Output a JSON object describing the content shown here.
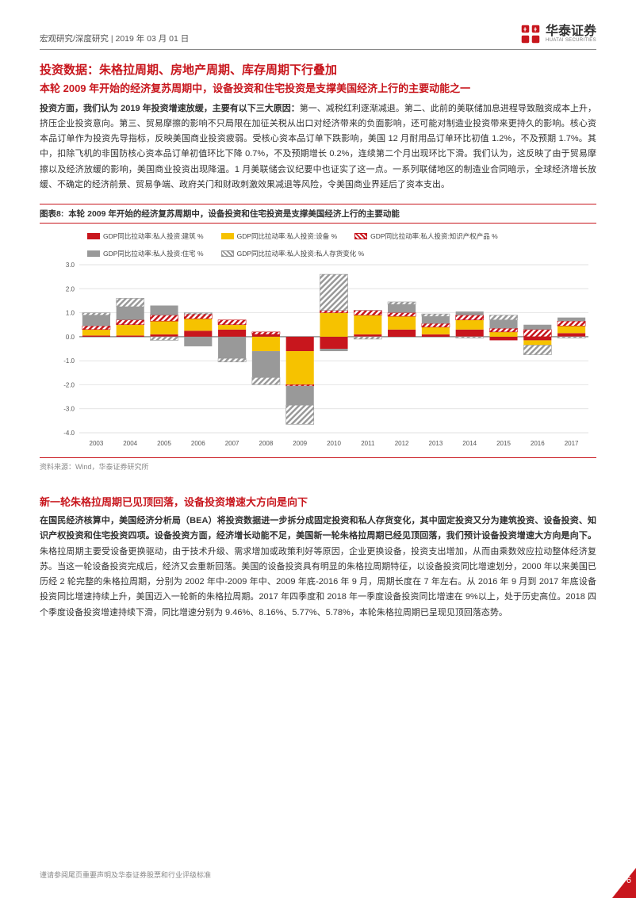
{
  "header": {
    "breadcrumb": "宏观研究/深度研究 | 2019 年 03 月 01 日",
    "logo_cn": "华泰证券",
    "logo_en": "HUATAI SECURITIES"
  },
  "section1": {
    "title": "投资数据：朱格拉周期、房地产周期、库存周期下行叠加",
    "subtitle": "本轮 2009 年开始的经济复苏周期中，设备投资和住宅投资是支撑美国经济上行的主要动能之一",
    "body_lead": "投资方面，我们认为 2019 年投资增速放缓，主要有以下三大原因：",
    "body_rest": "第一、减税红利逐渐减退。第二、此前的美联储加息进程导致融资成本上升，挤压企业投资意向。第三、贸易摩擦的影响不只局限在加征关税从出口对经济带来的负面影响，还可能对制造业投资带来更持久的影响。核心资本品订单作为投资先导指标，反映美国商业投资疲弱。受核心资本品订单下跌影响，美国 12 月耐用品订单环比初值 1.2%，不及预期 1.7%。其中，扣除飞机的非国防核心资本品订单初值环比下降 0.7%，不及预期增长 0.2%，连续第二个月出现环比下滑。我们认为，这反映了由于贸易摩擦以及经济放缓的影响，美国商业投资出现降温。1 月美联储会议纪要中也证实了这一点。一系列联储地区的制造业合同暗示，全球经济增长放缓、不确定的经济前景、贸易争端、政府关门和财政刺激效果减退等风险，令美国商业界延后了资本支出。"
  },
  "chart": {
    "caption_label": "图表8:",
    "caption_text": "本轮 2009 年开始的经济复苏周期中，设备投资和住宅投资是支撑美国经济上行的主要动能",
    "source": "资料来源：Wind，华泰证券研究所",
    "legend": [
      {
        "label": "GDP同比拉动率:私人投资:建筑 %",
        "fill": "#c8161d",
        "pattern": "solid"
      },
      {
        "label": "GDP同比拉动率:私人投资:设备 %",
        "fill": "#f6c200",
        "pattern": "solid"
      },
      {
        "label": "GDP同比拉动率:私人投资:知识产权产品 %",
        "fill": "#c8161d",
        "pattern": "hatch"
      },
      {
        "label": "GDP同比拉动率:私人投资:住宅 %",
        "fill": "#999999",
        "pattern": "solid"
      },
      {
        "label": "GDP同比拉动率:私人投资:私人存货变化 %",
        "fill": "#999999",
        "pattern": "hatch"
      }
    ],
    "categories": [
      "2003",
      "2004",
      "2005",
      "2006",
      "2007",
      "2008",
      "2009",
      "2010",
      "2011",
      "2012",
      "2013",
      "2014",
      "2015",
      "2016",
      "2017"
    ],
    "series": {
      "construction": [
        0.05,
        0.05,
        0.1,
        0.25,
        0.3,
        0.1,
        -0.6,
        -0.5,
        0.1,
        0.3,
        0.1,
        0.3,
        -0.15,
        -0.15,
        0.15
      ],
      "equipment": [
        0.25,
        0.45,
        0.55,
        0.5,
        0.2,
        -0.6,
        -1.4,
        1.0,
        0.8,
        0.55,
        0.3,
        0.4,
        0.2,
        -0.2,
        0.3
      ],
      "ip": [
        0.15,
        0.2,
        0.25,
        0.2,
        0.2,
        0.1,
        -0.05,
        0.1,
        0.2,
        0.15,
        0.15,
        0.2,
        0.15,
        0.3,
        0.2
      ],
      "residential": [
        0.45,
        0.55,
        0.4,
        -0.4,
        -0.9,
        -1.1,
        -0.8,
        -0.1,
        0.0,
        0.35,
        0.3,
        0.15,
        0.35,
        0.2,
        0.15
      ],
      "inventory": [
        0.1,
        0.35,
        -0.15,
        0.05,
        -0.15,
        -0.3,
        -0.8,
        1.5,
        -0.1,
        0.1,
        0.1,
        -0.05,
        0.2,
        -0.4,
        -0.05
      ]
    },
    "ylim": [
      -4.0,
      3.0
    ],
    "ytick_step": 1.0,
    "colors": {
      "construction": "#c8161d",
      "equipment": "#f6c200",
      "ip_hatch": "#c8161d",
      "residential": "#999999",
      "inventory_hatch": "#999999",
      "grid": "#d9d9d9",
      "axis": "#666666",
      "background": "#ffffff"
    },
    "bar_group_width": 0.82,
    "label_fontsize": 8,
    "axis_fontsize": 8
  },
  "section2": {
    "title": "新一轮朱格拉周期已见顶回落，设备投资增速大方向是向下",
    "body_lead": "在国民经济核算中，美国经济分析局（BEA）将投资数据进一步拆分成固定投资和私人存货变化，其中固定投资又分为建筑投资、设备投资、知识产权投资和住宅投资四项。设备投资方面，经济增长动能不足，美国新一轮朱格拉周期已经见顶回落，我们预计设备投资增速大方向是向下。",
    "body_rest": "朱格拉周期主要受设备更换驱动，由于技术升级、需求增加或政策利好等原因，企业更换设备，投资支出增加，从而由乘数效应拉动整体经济复苏。当这一轮设备投资完成后，经济又会重新回落。美国的设备投资具有明显的朱格拉周期特征，以设备投资同比增速划分，2000 年以来美国已历经 2 轮完整的朱格拉周期，分别为 2002 年中-2009 年中、2009 年底-2016 年 9 月，周期长度在 7 年左右。从 2016 年 9 月到 2017 年底设备投资同比增速持续上升，美国迈入一轮新的朱格拉周期。2017 年四季度和 2018 年一季度设备投资同比增速在 9%以上，处于历史高位。2018 四个季度设备投资增速持续下滑，同比增速分别为 9.46%、8.16%、5.77%、5.78%，本轮朱格拉周期已呈现见顶回落态势。"
  },
  "footer": {
    "disclaimer": "谨请参阅尾页重要声明及华泰证券股票和行业评级标准",
    "page": "6"
  }
}
